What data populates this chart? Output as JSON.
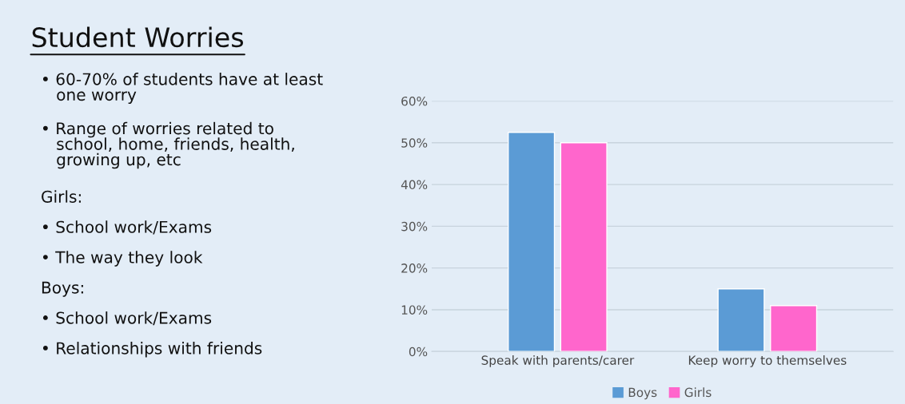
{
  "chart_data": {
    "type": "bar",
    "title": "Student Worries",
    "annotations": [
      "• 60-70% of students have at least\n   one worry",
      "• Range of worries related to\n   school, home, friends, health,\n   growing up, etc",
      "Girls:",
      "• School work/Exams",
      "• The way they look",
      "Boys:",
      "• School work/Exams",
      "• Relationships with friends"
    ],
    "categories": [
      "Speak with parents/carer",
      "Keep worry to themselves"
    ],
    "series": [
      {
        "name": "Boys",
        "color": "#5b9bd5",
        "values": [
          52.5,
          15
        ]
      },
      {
        "name": "Girls",
        "color": "#ff66cc",
        "values": [
          50,
          11
        ]
      }
    ],
    "ylim": [
      0,
      60
    ],
    "yticks": [
      {
        "value": 0,
        "label": "0%"
      },
      {
        "value": 10,
        "label": "10%"
      },
      {
        "value": 20,
        "label": "20%"
      },
      {
        "value": 30,
        "label": "30%"
      },
      {
        "value": 40,
        "label": "40%"
      },
      {
        "value": 50,
        "label": "50%"
      },
      {
        "value": 60,
        "label": "60%"
      }
    ],
    "grid": "y",
    "legend": "bottom"
  }
}
